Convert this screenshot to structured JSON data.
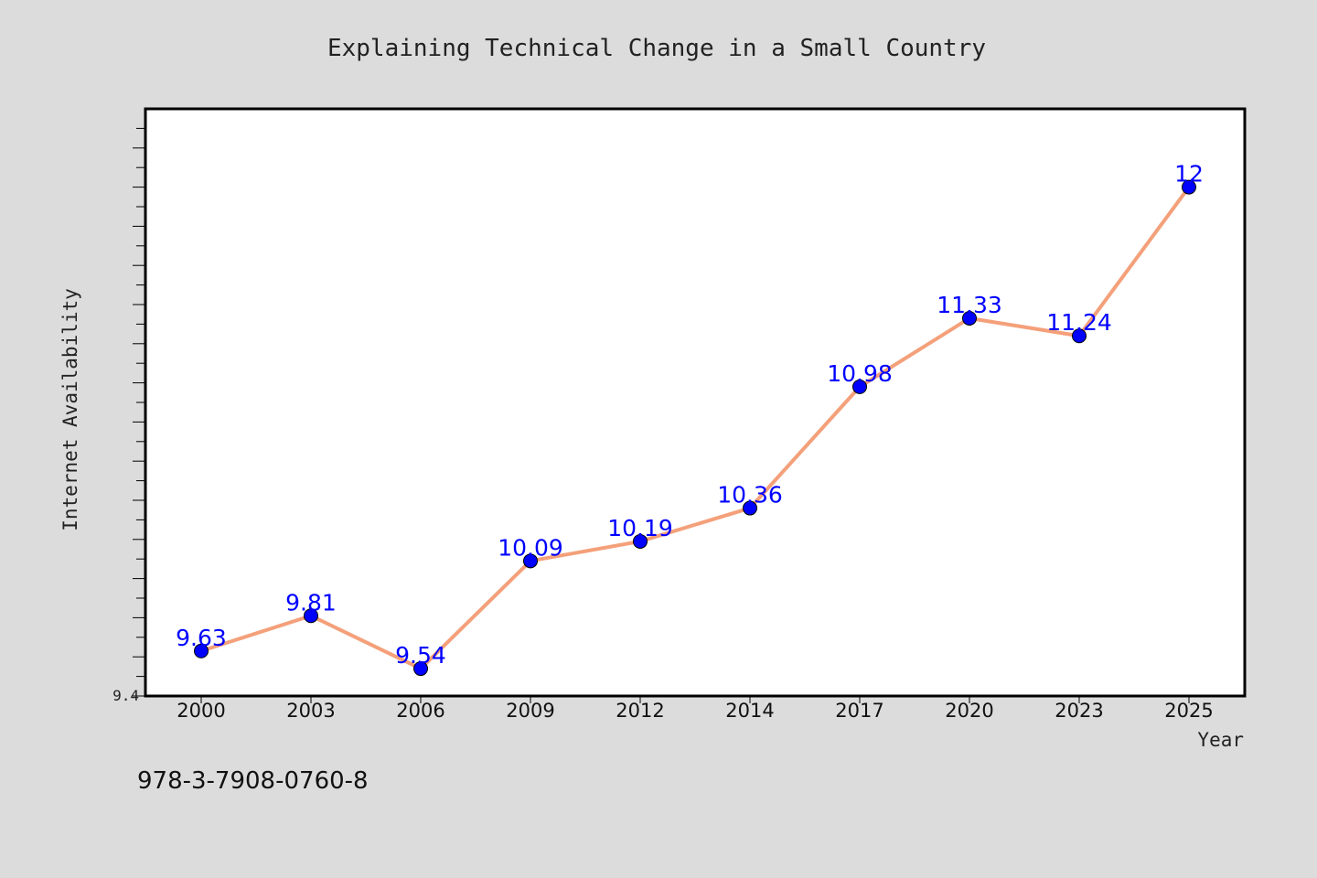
{
  "chart_data": {
    "type": "line",
    "title": "Explaining Technical Change in a Small Country",
    "xlabel": "Year",
    "ylabel": "Internet Availability",
    "categories": [
      "2000",
      "2003",
      "2006",
      "2009",
      "2012",
      "2014",
      "2017",
      "2020",
      "2023",
      "2025"
    ],
    "series": [
      {
        "values": [
          9.63,
          9.81,
          9.54,
          10.09,
          10.19,
          10.36,
          10.98,
          11.33,
          11.24,
          12
        ]
      }
    ],
    "ylim": [
      9.4,
      12.4
    ],
    "yticks_labeled": [
      "9.4"
    ],
    "grid": false,
    "line_color": "#f4a07a",
    "marker_color": "#0000ff",
    "label_color": "#0000ff",
    "footnote": "978-3-7908-0760-8"
  }
}
